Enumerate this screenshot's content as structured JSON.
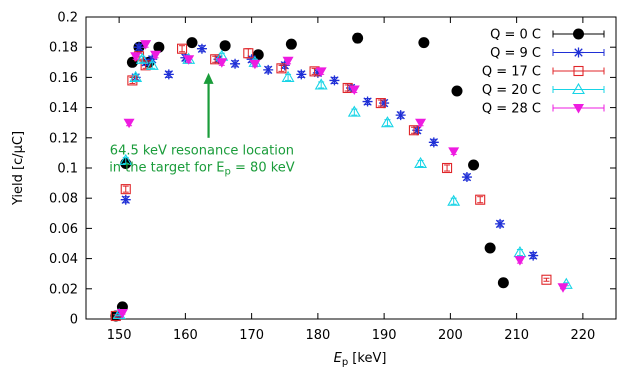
{
  "chart_data": {
    "type": "scatter",
    "xlabel_main": "E",
    "xlabel_sub": "p",
    "xlabel_unit": " [keV]",
    "ylabel": "Yield [c/µC]",
    "xlim": [
      145,
      225
    ],
    "ylim": [
      0,
      0.2
    ],
    "xticks": [
      150,
      160,
      170,
      180,
      190,
      200,
      210,
      220
    ],
    "yticks": [
      0,
      0.02,
      0.04,
      0.06,
      0.08,
      0.1,
      0.12,
      0.14,
      0.16,
      0.18,
      0.2
    ],
    "ytick_labels": [
      "0",
      "0.02",
      "0.04",
      "0.06",
      "0.08",
      "0.1",
      "0.12",
      "0.14",
      "0.16",
      "0.18",
      "0.2"
    ],
    "legend_position": "top-right",
    "grid": false,
    "annotation": {
      "line1": "64.5 keV resonance location",
      "line2_main": "in the target for E",
      "line2_sub": "p",
      "line2_tail": " = 80 keV",
      "arrow_x": 163.5,
      "arrow_y_from": 0.12,
      "arrow_y_to": 0.163,
      "text_x": 162.5,
      "text_y": 0.109,
      "color": "#1a9c3a"
    },
    "series": [
      {
        "name": "Q = 0 C",
        "marker": "circle",
        "color": "#000000",
        "points": [
          [
            149.5,
            0.002,
            0.0008
          ],
          [
            150.5,
            0.008,
            0.0009
          ],
          [
            151,
            0.103,
            0.002
          ],
          [
            152,
            0.17,
            0.002
          ],
          [
            153,
            0.18,
            0.002
          ],
          [
            154.5,
            0.17,
            0.002
          ],
          [
            156,
            0.18,
            0.002
          ],
          [
            161,
            0.183,
            0.002
          ],
          [
            166,
            0.181,
            0.002
          ],
          [
            171,
            0.175,
            0.002
          ],
          [
            176,
            0.182,
            0.002
          ],
          [
            186,
            0.186,
            0.003
          ],
          [
            196,
            0.183,
            0.002
          ],
          [
            201,
            0.151,
            0.002
          ],
          [
            203.5,
            0.102,
            0.002
          ],
          [
            206,
            0.047,
            0.002
          ],
          [
            208,
            0.024,
            0.001
          ]
        ]
      },
      {
        "name": "Q = 9 C",
        "marker": "star",
        "color": "#1f2fd6",
        "points": [
          [
            150,
            0.003,
            0.0008
          ],
          [
            151,
            0.079,
            0.002
          ],
          [
            152.5,
            0.16,
            0.002
          ],
          [
            153,
            0.18,
            0.002
          ],
          [
            154,
            0.17,
            0.002
          ],
          [
            155,
            0.172,
            0.002
          ],
          [
            157.5,
            0.162,
            0.002
          ],
          [
            160,
            0.173,
            0.002
          ],
          [
            162.5,
            0.179,
            0.002
          ],
          [
            165,
            0.172,
            0.002
          ],
          [
            167.5,
            0.169,
            0.002
          ],
          [
            170,
            0.172,
            0.002
          ],
          [
            172.5,
            0.165,
            0.002
          ],
          [
            175,
            0.168,
            0.002
          ],
          [
            177.5,
            0.162,
            0.002
          ],
          [
            180,
            0.163,
            0.002
          ],
          [
            182.5,
            0.158,
            0.002
          ],
          [
            185,
            0.153,
            0.002
          ],
          [
            187.5,
            0.144,
            0.002
          ],
          [
            190,
            0.143,
            0.002
          ],
          [
            192.5,
            0.135,
            0.002
          ],
          [
            195,
            0.125,
            0.002
          ],
          [
            197.5,
            0.117,
            0.002
          ],
          [
            202.5,
            0.094,
            0.002
          ],
          [
            207.5,
            0.063,
            0.002
          ],
          [
            212.5,
            0.042,
            0.002
          ]
        ]
      },
      {
        "name": "Q = 17 C",
        "marker": "square",
        "color": "#e0262a",
        "points": [
          [
            149.5,
            0.002,
            0.0008
          ],
          [
            151,
            0.086,
            0.002
          ],
          [
            152,
            0.158,
            0.002
          ],
          [
            153,
            0.174,
            0.002
          ],
          [
            154,
            0.168,
            0.002
          ],
          [
            159.5,
            0.179,
            0.002
          ],
          [
            164.5,
            0.172,
            0.002
          ],
          [
            169.5,
            0.176,
            0.003
          ],
          [
            174.5,
            0.166,
            0.002
          ],
          [
            179.5,
            0.164,
            0.002
          ],
          [
            184.5,
            0.153,
            0.002
          ],
          [
            189.5,
            0.143,
            0.002
          ],
          [
            194.5,
            0.125,
            0.002
          ],
          [
            199.5,
            0.1,
            0.002
          ],
          [
            204.5,
            0.079,
            0.002
          ],
          [
            214.5,
            0.026,
            0.001
          ]
        ]
      },
      {
        "name": "Q = 20 C",
        "marker": "triangle-up",
        "color": "#17d4e6",
        "points": [
          [
            150,
            0.003,
            0.0008
          ],
          [
            151,
            0.105,
            0.002
          ],
          [
            152.5,
            0.16,
            0.002
          ],
          [
            153.5,
            0.172,
            0.002
          ],
          [
            155,
            0.168,
            0.002
          ],
          [
            160.5,
            0.172,
            0.002
          ],
          [
            165.5,
            0.174,
            0.002
          ],
          [
            170.5,
            0.17,
            0.002
          ],
          [
            175.5,
            0.16,
            0.002
          ],
          [
            180.5,
            0.155,
            0.002
          ],
          [
            185.5,
            0.137,
            0.002
          ],
          [
            190.5,
            0.13,
            0.002
          ],
          [
            195.5,
            0.103,
            0.002
          ],
          [
            200.5,
            0.078,
            0.002
          ],
          [
            210.5,
            0.044,
            0.002
          ],
          [
            217.5,
            0.023,
            0.001
          ]
        ]
      },
      {
        "name": "Q =  28 C",
        "marker": "triangle-down",
        "color": "#ee1be0",
        "points": [
          [
            150.5,
            0.004,
            0.0008
          ],
          [
            151.5,
            0.13,
            0.002
          ],
          [
            152.5,
            0.174,
            0.002
          ],
          [
            154,
            0.182,
            0.002
          ],
          [
            155.5,
            0.175,
            0.002
          ],
          [
            160.5,
            0.172,
            0.002
          ],
          [
            165.5,
            0.17,
            0.002
          ],
          [
            170.5,
            0.169,
            0.002
          ],
          [
            175.5,
            0.171,
            0.002
          ],
          [
            180.5,
            0.164,
            0.002
          ],
          [
            185.5,
            0.152,
            0.002
          ],
          [
            195.5,
            0.13,
            0.002
          ],
          [
            200.5,
            0.111,
            0.002
          ],
          [
            210.5,
            0.039,
            0.002
          ],
          [
            217,
            0.021,
            0.001
          ]
        ]
      }
    ]
  }
}
